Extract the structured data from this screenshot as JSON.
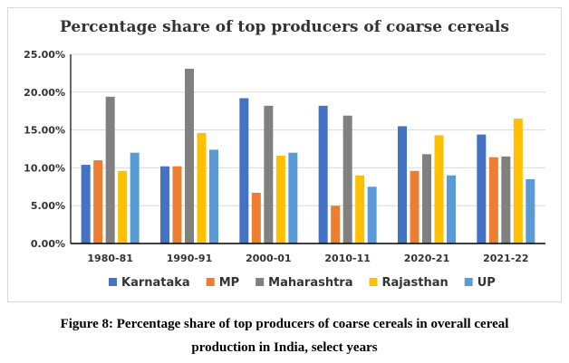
{
  "chart_data": {
    "type": "bar",
    "title": "Percentage share of top producers of coarse cereals",
    "categories": [
      "1980-81",
      "1990-91",
      "2000-01",
      "2010-11",
      "2020-21",
      "2021-22"
    ],
    "series": [
      {
        "name": "Karnataka",
        "color": "#4472c4",
        "values": [
          10.4,
          10.2,
          19.2,
          18.2,
          15.5,
          14.4
        ]
      },
      {
        "name": "MP",
        "color": "#ed7d31",
        "values": [
          11.0,
          10.2,
          6.7,
          5.0,
          9.6,
          11.4
        ]
      },
      {
        "name": "Maharashtra",
        "color": "#808080",
        "values": [
          19.4,
          23.1,
          18.2,
          16.9,
          11.8,
          11.5
        ]
      },
      {
        "name": "Rajasthan",
        "color": "#ffc000",
        "values": [
          9.6,
          14.6,
          11.6,
          9.0,
          14.3,
          16.5
        ]
      },
      {
        "name": "UP",
        "color": "#5b9bd5",
        "values": [
          12.0,
          12.4,
          12.0,
          7.5,
          9.0,
          8.5
        ]
      }
    ],
    "yticks": [
      "0.00%",
      "5.00%",
      "10.00%",
      "15.00%",
      "20.00%",
      "25.00%"
    ],
    "ylim": [
      0,
      25
    ],
    "xlabel": "",
    "ylabel": "",
    "grid": true,
    "legend": "bottom"
  },
  "caption": {
    "line1": "Figure 8: Percentage share of top producers of coarse cereals in overall cereal",
    "line2": "production in India, select years"
  }
}
